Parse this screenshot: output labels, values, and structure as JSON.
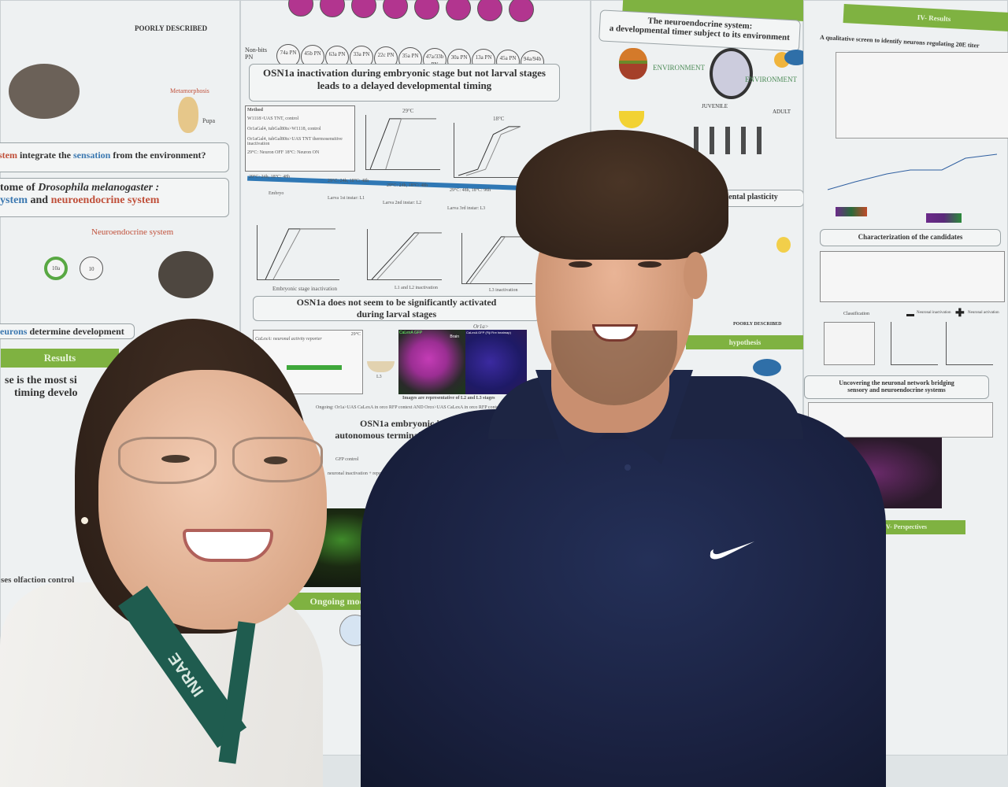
{
  "poster_left": {
    "poorly_described": "POORLY DESCRIBED",
    "non_bits_pn": "Non-bits PN",
    "question": {
      "part1": "stem",
      "part2": " integrate the ",
      "part3": "sensation",
      "part4": " from the environment?"
    },
    "connectome_title": {
      "line1": "tome of ",
      "italic": "Drosophila melanogaster :",
      "line2a": "ystem",
      "line2b": " and ",
      "line2c": "neuroendocrine system"
    },
    "neuroendocrine_label": "Neuroendocrine system",
    "node_10a": "10a",
    "node_10": "10",
    "neurons_determine": {
      "colored": "eurons",
      "rest": " determine development"
    },
    "results_label": "Results",
    "result_statement": {
      "line1": "se is the most si",
      "line2": "timing develo"
    },
    "metamorphosis": "Metamorphosis",
    "pupa": "Pupa",
    "olfaction": "ses olfaction control"
  },
  "poster_middle": {
    "pn_labels": [
      "74a PN",
      "45b PN",
      "63a PN",
      "33a PN",
      "22c PN",
      "35a PN",
      "47a/33b PN",
      "30a PN",
      "13a PN",
      "45a PN",
      "94a/94b PN"
    ],
    "title1": {
      "line1": "OSN1a inactivation during embryonic stage but not larval stages",
      "line2": "leads to a delayed developmental timing"
    },
    "method_label": "Method",
    "legend": [
      "W1118>UAS TNT, control",
      "Or1aGal4, tubGal80ts>W1118, control",
      "Or1aGal4, tubGal80ts>UAS TNT thermosensitive inactivation",
      "29°C: Neuron OFF   18°C: Neuron ON"
    ],
    "plot_titles": [
      "29°C",
      "18°C"
    ],
    "timeline": [
      "29°C: 24h, 18°C: 48h",
      "29°C: 24h, 18°C: 48h",
      "29°C: 24h, 18°C: 48h",
      "29°C: 48h, 18°C: 96h"
    ],
    "stages": [
      "Embryo",
      "Larva 1st instar: L1",
      "Larva 2nd instar: L2",
      "Larva 3rd instar: L3"
    ],
    "plot_captions": [
      "Embryonic stage inactivation",
      "L1 and L2 inactivation",
      "L3 inactivation"
    ],
    "title2": {
      "line1": "OSN1a does not seem to be significantly activated",
      "line2": "during larval stages"
    },
    "reporter_temp": "29°C",
    "reporter_label": "CaLexA: neuronal activity reporter",
    "larva_label": "L3",
    "image_header": "Or1a>",
    "image_left_label": "CaLexA GFP",
    "image_brain_label": "Brain",
    "image_right_label": "CaLexA GFP (Fiji Fire heatmap)",
    "image_caption": "Images are representative of L2 and L3 stages",
    "ongoing_note": "Ongoing: Or1a>UAS CaLexA in orco RFP context AND Orco>UAS CaLexA in orco RFP context",
    "title3": {
      "line1": "OSN1a embryonic inactivation",
      "line2": "autonomous terminal morphology defect in IAL"
    },
    "control_label": "GFP control",
    "inactivation_label": "neuronal inactivation + reporter",
    "ongoing_header": "Ongoing mode"
  },
  "poster_right": {
    "title": {
      "line1": "The neuroendocrine system:",
      "line2": "a developmental timer subject to its environment"
    },
    "environment_left": "ENVIRONMENT",
    "environment_right": "ENVIRONMENT",
    "juvenile": "JUVENILE",
    "adult": "ADULT",
    "plasticity": "developmental plasticity",
    "poorly_described": "POORLY DESCRIBED",
    "hypothesis": "hypothesis"
  },
  "poster_far_right": {
    "section_header": "IV- Results",
    "screen_title": "A qualitative screen to identify neurons regulating 20E titer",
    "characterization_title": "Characterization of the candidates",
    "classification": "Classification",
    "neuronal_inactivation": "Neuronal inactivation",
    "neuronal_activation": "Neuronal activation",
    "network_title": {
      "line1": "Uncovering the neuronal network bridging",
      "line2": "sensory and neuroendocrine systems"
    },
    "perspectives": "V- Perspectives"
  },
  "people": {
    "lanyard_text": "INRAE",
    "shirt_logo": "nike-swoosh"
  },
  "colors": {
    "poster_green": "#7fb241",
    "blue_text": "#3b78b0",
    "red_text": "#c0503a",
    "shirt_navy": "#1c2440",
    "lanyard_green": "#1f5c4f"
  }
}
